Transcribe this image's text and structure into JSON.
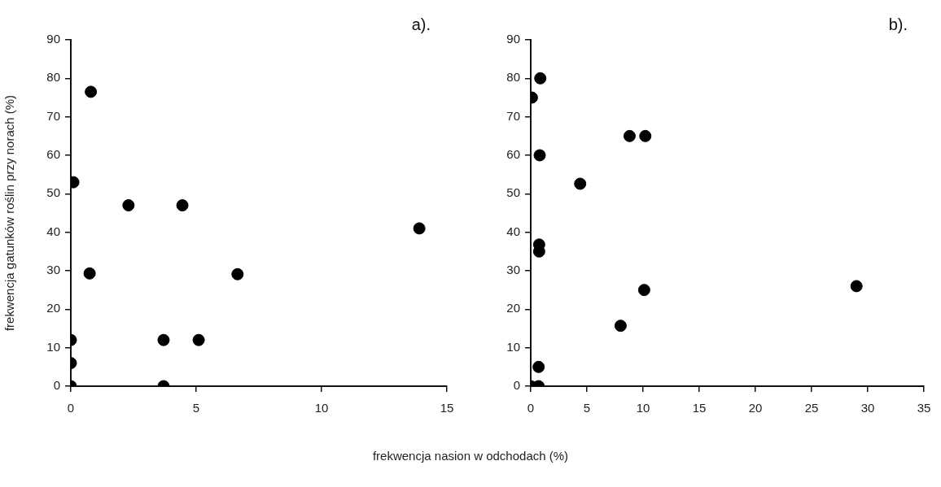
{
  "chart_data": [
    {
      "type": "scatter",
      "ylabel": "frekwencja gatunków roślin przy norach (%)",
      "xlabel": "frekwencja nasion w odchodach (%)",
      "annotations": [
        "a)."
      ],
      "marker": "circle",
      "grid": false,
      "xlim": [
        0,
        15
      ],
      "xticks": [
        0,
        5,
        10,
        15
      ],
      "ylim": [
        0,
        90
      ],
      "yticks": [
        0,
        10,
        20,
        30,
        40,
        50,
        60,
        70,
        80,
        90
      ],
      "series": [
        {
          "color": "#000000",
          "x": [
            0.8,
            0.1,
            2.3,
            4.45,
            13.9,
            0.75,
            6.65,
            0,
            3.7,
            5.1,
            0,
            0,
            3.7
          ],
          "values": [
            76.5,
            53,
            47,
            47,
            41,
            29.3,
            29.1,
            12,
            12,
            12,
            6,
            0,
            0
          ]
        }
      ]
    },
    {
      "type": "scatter",
      "annotations": [
        "b)."
      ],
      "marker": "circle",
      "grid": false,
      "xlim": [
        0,
        35
      ],
      "xticks": [
        0,
        5,
        10,
        15,
        20,
        25,
        30,
        35
      ],
      "ylim": [
        0,
        90
      ],
      "yticks": [
        0,
        10,
        20,
        30,
        40,
        50,
        60,
        70,
        80,
        90
      ],
      "series": [
        {
          "color": "#000000",
          "x": [
            0.85,
            0.1,
            8.8,
            10.2,
            0.8,
            4.4,
            0.75,
            0.75,
            10.1,
            29,
            8,
            0.7,
            0,
            0.7
          ],
          "values": [
            80,
            75,
            65,
            65,
            60,
            52.6,
            36.8,
            35,
            25,
            26,
            15.7,
            5,
            0,
            0
          ]
        }
      ]
    }
  ]
}
